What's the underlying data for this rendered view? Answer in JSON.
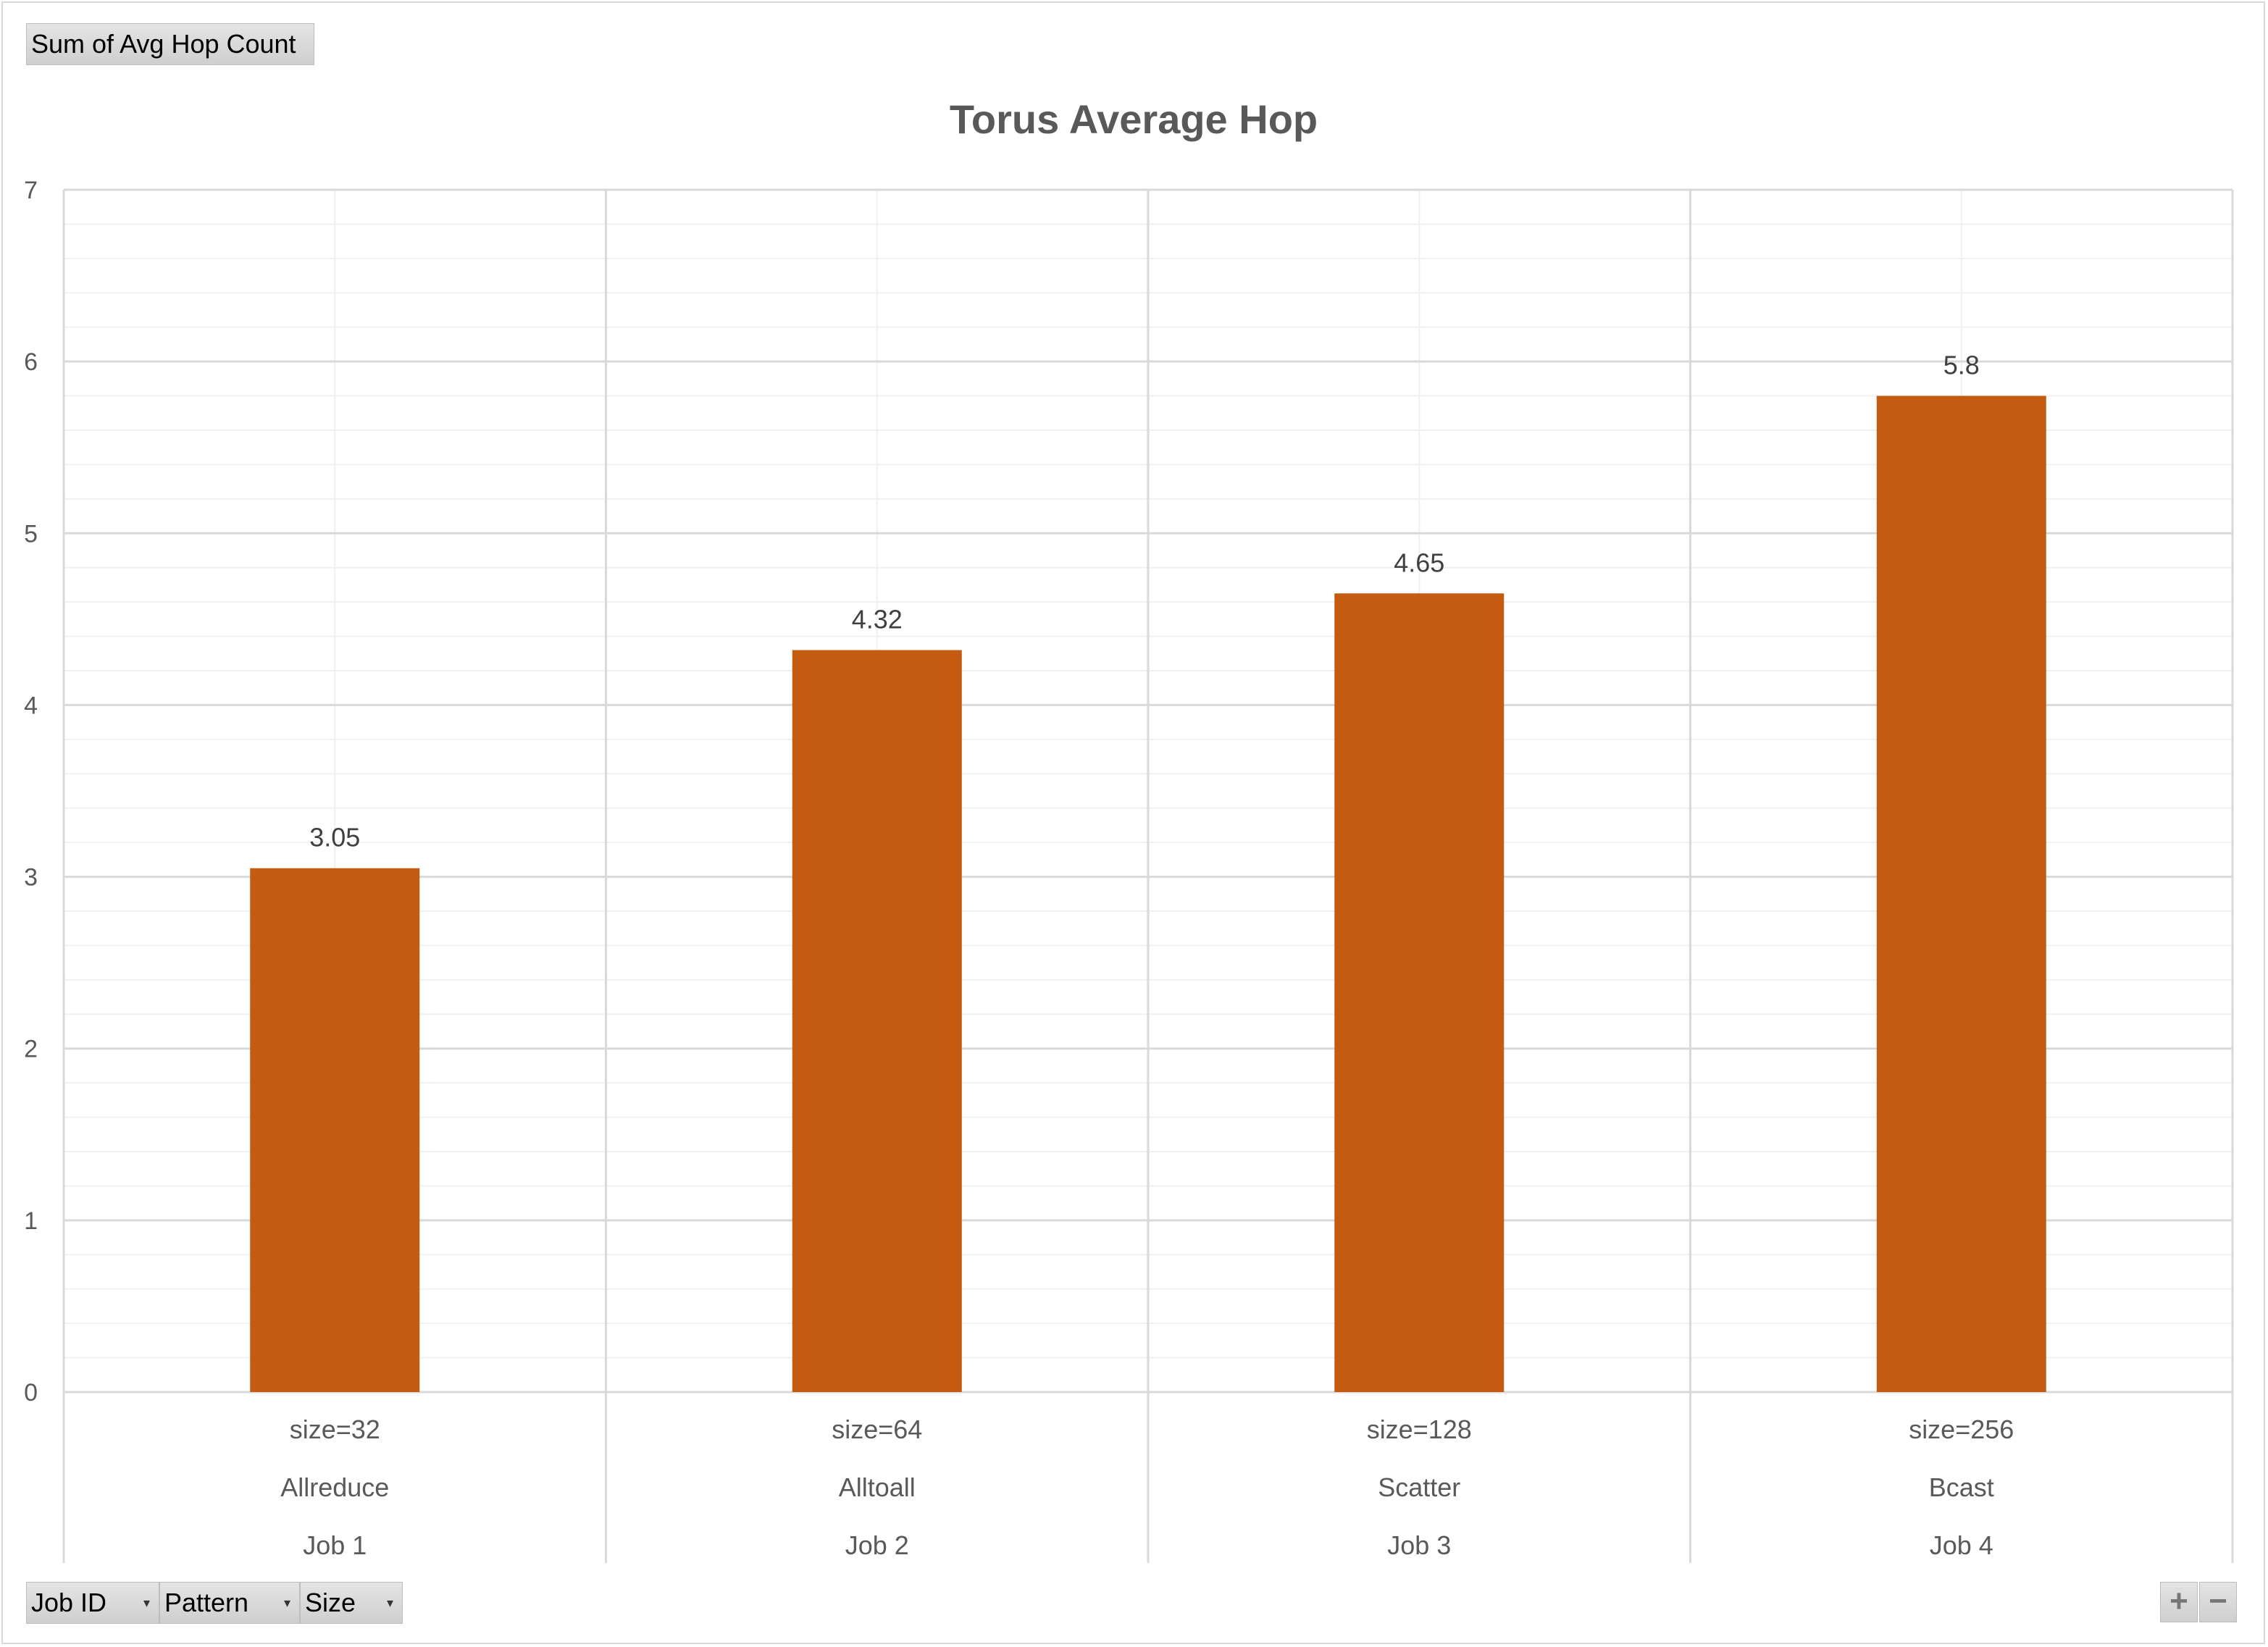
{
  "value_field_button": {
    "label": "Sum of Avg Hop Count"
  },
  "axis_field_buttons": [
    {
      "label": "Job ID"
    },
    {
      "label": "Pattern"
    },
    {
      "label": "Size"
    }
  ],
  "zoom": {
    "plus": "+",
    "minus": "−"
  },
  "colors": {
    "bar": "#c55a11",
    "grid_major": "#d9d9d9",
    "grid_minor": "#f0f0f0",
    "text": "#595959",
    "title": "#595959"
  },
  "chart_data": {
    "type": "bar",
    "title": "Torus Average Hop",
    "xlabel": "",
    "ylabel": "",
    "ylim": [
      0,
      7
    ],
    "yticks": [
      "0",
      "1",
      "2",
      "3",
      "4",
      "5",
      "6",
      "7"
    ],
    "minor_gridlines": true,
    "grid": true,
    "legend": "none",
    "category_levels": [
      [
        "size=32",
        "size=64",
        "size=128",
        "size=256"
      ],
      [
        "Allreduce",
        "Alltoall",
        "Scatter",
        "Bcast"
      ],
      [
        "Job 1",
        "Job 2",
        "Job 3",
        "Job 4"
      ]
    ],
    "values": [
      3.05,
      4.32,
      4.65,
      5.8
    ],
    "data_labels": [
      "3.05",
      "4.32",
      "4.65",
      "5.8"
    ]
  }
}
